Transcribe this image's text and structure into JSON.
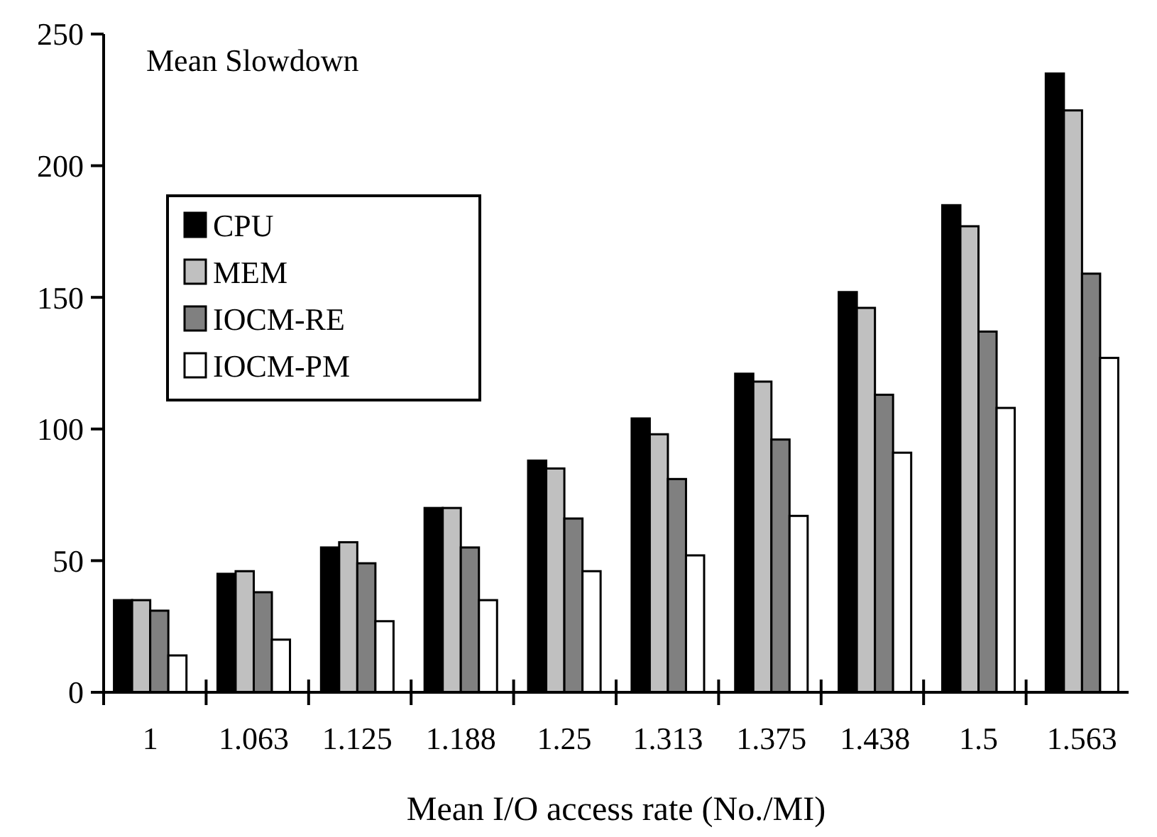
{
  "chart_data": {
    "type": "bar",
    "title": "Mean Slowdown",
    "xlabel": "Mean I/O access rate (No./MI)",
    "categories": [
      "1",
      "1.063",
      "1.125",
      "1.188",
      "1.25",
      "1.313",
      "1.375",
      "1.438",
      "1.5",
      "1.563"
    ],
    "series": [
      {
        "name": "CPU",
        "color": "#000000",
        "values": [
          35,
          45,
          55,
          70,
          88,
          104,
          121,
          152,
          185,
          235
        ]
      },
      {
        "name": "MEM",
        "color": "#c0c0c0",
        "values": [
          35,
          46,
          57,
          70,
          85,
          98,
          118,
          146,
          177,
          221
        ]
      },
      {
        "name": "IOCM-RE",
        "color": "#808080",
        "values": [
          31,
          38,
          49,
          55,
          66,
          81,
          96,
          113,
          137,
          159
        ]
      },
      {
        "name": "IOCM-PM",
        "color": "#ffffff",
        "values": [
          14,
          20,
          27,
          35,
          46,
          52,
          67,
          91,
          108,
          127
        ]
      }
    ],
    "ylim": [
      0,
      250
    ],
    "yticks": [
      0,
      50,
      100,
      150,
      200,
      250
    ],
    "grid": false,
    "legend": "top left"
  }
}
